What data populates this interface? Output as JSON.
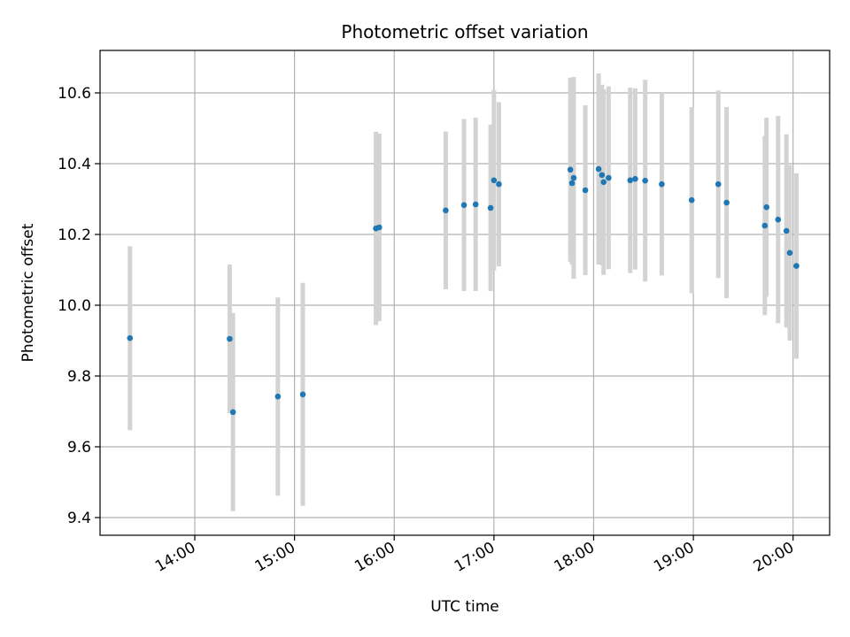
{
  "chart_data": {
    "type": "scatter",
    "title": "Photometric offset variation",
    "xlabel": "UTC time",
    "ylabel": "Photometric offset",
    "x_tick_labels": [
      "14:00",
      "15:00",
      "16:00",
      "17:00",
      "18:00",
      "19:00",
      "20:00"
    ],
    "y_tick_labels": [
      "9.4",
      "9.6",
      "9.8",
      "10.0",
      "10.2",
      "10.4",
      "10.6"
    ],
    "xlim": [
      "13:03",
      "20:22"
    ],
    "ylim": [
      9.35,
      10.72
    ],
    "grid": true,
    "marker_color": "#1f77b4",
    "errorbar_color": "#d3d3d3",
    "points": [
      {
        "x": "13:21",
        "y": 9.907,
        "err": 0.26
      },
      {
        "x": "14:21",
        "y": 9.905,
        "err": 0.21
      },
      {
        "x": "14:23",
        "y": 9.698,
        "err": 0.28
      },
      {
        "x": "14:50",
        "y": 9.742,
        "err": 0.28
      },
      {
        "x": "15:05",
        "y": 9.748,
        "err": 0.315
      },
      {
        "x": "15:49",
        "y": 10.217,
        "err": 0.273
      },
      {
        "x": "15:51",
        "y": 10.22,
        "err": 0.265
      },
      {
        "x": "16:31",
        "y": 10.268,
        "err": 0.223
      },
      {
        "x": "16:42",
        "y": 10.283,
        "err": 0.243
      },
      {
        "x": "16:49",
        "y": 10.285,
        "err": 0.245
      },
      {
        "x": "16:58",
        "y": 10.275,
        "err": 0.235
      },
      {
        "x": "17:00",
        "y": 10.353,
        "err": 0.255
      },
      {
        "x": "17:03",
        "y": 10.342,
        "err": 0.232
      },
      {
        "x": "17:46",
        "y": 10.383,
        "err": 0.26
      },
      {
        "x": "17:47",
        "y": 10.345,
        "err": 0.23
      },
      {
        "x": "17:48",
        "y": 10.36,
        "err": 0.285
      },
      {
        "x": "17:55",
        "y": 10.325,
        "err": 0.24
      },
      {
        "x": "18:03",
        "y": 10.385,
        "err": 0.27
      },
      {
        "x": "18:05",
        "y": 10.368,
        "err": 0.255
      },
      {
        "x": "18:06",
        "y": 10.348,
        "err": 0.262
      },
      {
        "x": "18:09",
        "y": 10.36,
        "err": 0.258
      },
      {
        "x": "18:22",
        "y": 10.353,
        "err": 0.262
      },
      {
        "x": "18:25",
        "y": 10.357,
        "err": 0.256
      },
      {
        "x": "18:31",
        "y": 10.352,
        "err": 0.285
      },
      {
        "x": "18:41",
        "y": 10.342,
        "err": 0.258
      },
      {
        "x": "18:59",
        "y": 10.297,
        "err": 0.263
      },
      {
        "x": "19:15",
        "y": 10.342,
        "err": 0.265
      },
      {
        "x": "19:20",
        "y": 10.29,
        "err": 0.27
      },
      {
        "x": "19:43",
        "y": 10.225,
        "err": 0.253
      },
      {
        "x": "19:44",
        "y": 10.277,
        "err": 0.253
      },
      {
        "x": "19:51",
        "y": 10.242,
        "err": 0.293
      },
      {
        "x": "19:56",
        "y": 10.21,
        "err": 0.273
      },
      {
        "x": "19:58",
        "y": 10.148,
        "err": 0.248
      },
      {
        "x": "20:02",
        "y": 10.111,
        "err": 0.262
      }
    ]
  }
}
